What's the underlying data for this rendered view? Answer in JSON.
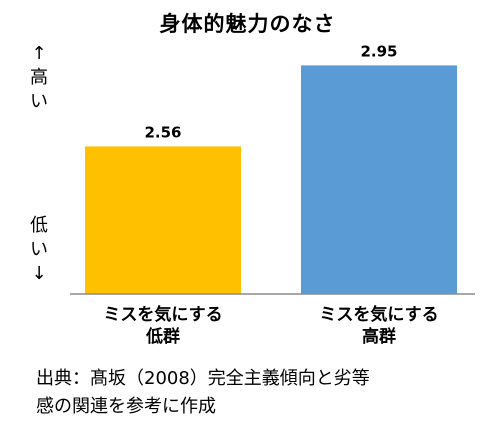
{
  "chart_data": {
    "type": "bar",
    "title": "身体的魅力のなさ",
    "categories": [
      [
        "ミスを気にする",
        "低群"
      ],
      [
        "ミスを気にする",
        "高群"
      ]
    ],
    "values": [
      2.56,
      2.95
    ],
    "data_labels": [
      "2.56",
      "2.95"
    ],
    "ylim": [
      1.85,
      3.0
    ],
    "colors": [
      "#ffc000",
      "#5b9bd5"
    ],
    "axis_high_label": [
      "↑",
      "高",
      "い"
    ],
    "axis_low_label": [
      "低",
      "い",
      "↓"
    ],
    "grid": false,
    "legend": "none"
  },
  "source_lines": [
    "出典：髙坂（2008）完全主義傾向と劣等",
    "感の関連を参考に作成"
  ]
}
